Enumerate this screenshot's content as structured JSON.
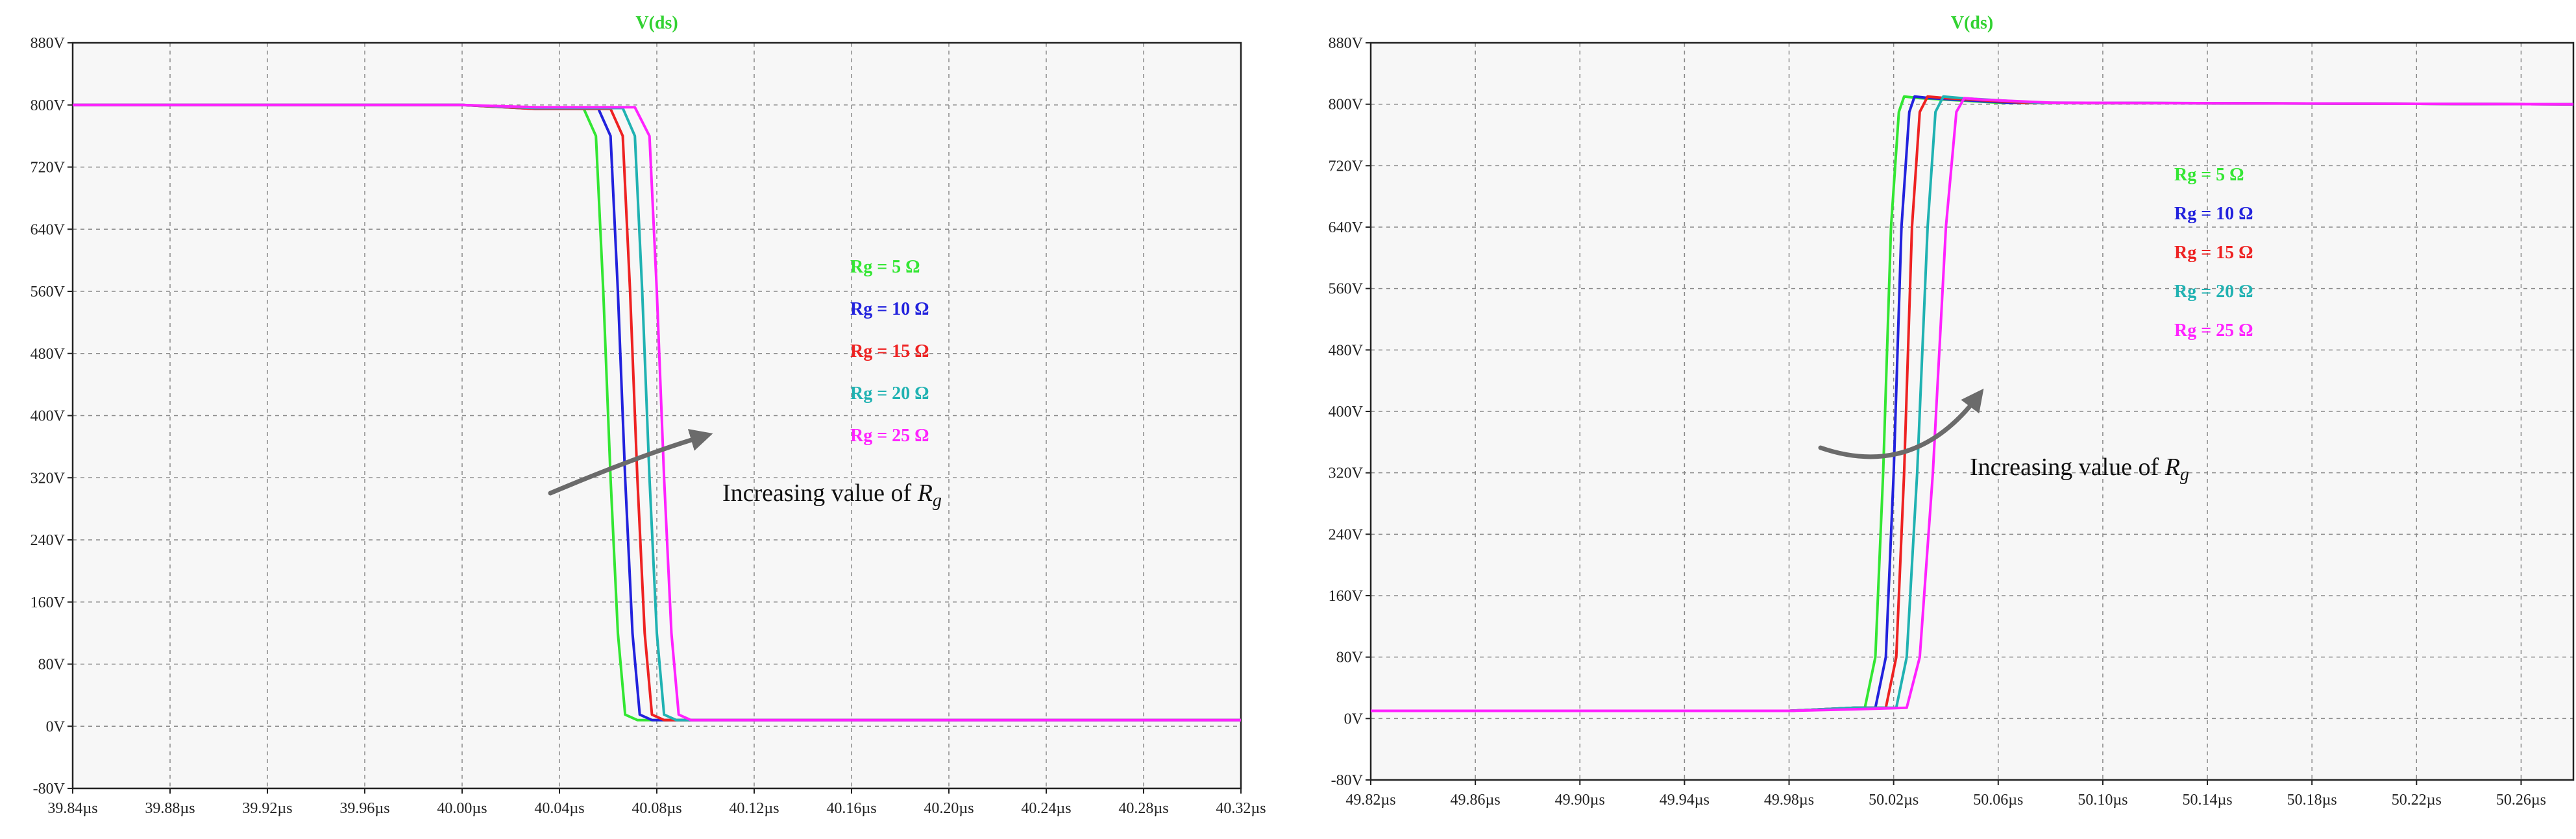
{
  "colors": {
    "background": "#f7f7f7",
    "grid": "#8a8a8a",
    "arrow": "#6b6b6b",
    "title": "#32d232"
  },
  "chart_data": [
    {
      "type": "line",
      "title": "V(ds)",
      "xlabel": "",
      "ylabel": "",
      "x_unit": "µs",
      "y_unit": "V",
      "xlim": [
        39.84,
        40.32
      ],
      "ylim": [
        -80,
        880
      ],
      "x_ticks": [
        "39.84µs",
        "39.88µs",
        "39.92µs",
        "39.96µs",
        "40.00µs",
        "40.04µs",
        "40.08µs",
        "40.12µs",
        "40.16µs",
        "40.20µs",
        "40.24µs",
        "40.28µs",
        "40.32µs"
      ],
      "y_ticks": [
        "880V",
        "800V",
        "720V",
        "640V",
        "560V",
        "480V",
        "400V",
        "320V",
        "240V",
        "160V",
        "80V",
        "0V",
        "-80V"
      ],
      "grid": true,
      "legend_position": "center-right",
      "annotation": "Increasing value of R_g",
      "series": [
        {
          "name": "Rg = 5 Ω",
          "color": "#33e633",
          "points": [
            [
              39.84,
              800
            ],
            [
              40.0,
              800
            ],
            [
              40.03,
              796
            ],
            [
              40.05,
              795
            ],
            [
              40.055,
              760
            ],
            [
              40.058,
              560
            ],
            [
              40.061,
              320
            ],
            [
              40.064,
              120
            ],
            [
              40.067,
              15
            ],
            [
              40.072,
              8
            ],
            [
              40.1,
              8
            ],
            [
              40.32,
              8
            ]
          ]
        },
        {
          "name": "Rg = 10 Ω",
          "color": "#2222dd",
          "points": [
            [
              39.84,
              800
            ],
            [
              40.0,
              800
            ],
            [
              40.03,
              795
            ],
            [
              40.056,
              795
            ],
            [
              40.061,
              760
            ],
            [
              40.064,
              560
            ],
            [
              40.067,
              320
            ],
            [
              40.07,
              120
            ],
            [
              40.073,
              15
            ],
            [
              40.078,
              8
            ],
            [
              40.1,
              8
            ],
            [
              40.32,
              8
            ]
          ]
        },
        {
          "name": "Rg = 15 Ω",
          "color": "#ee2222",
          "points": [
            [
              39.84,
              800
            ],
            [
              40.0,
              800
            ],
            [
              40.03,
              795
            ],
            [
              40.061,
              795
            ],
            [
              40.066,
              760
            ],
            [
              40.069,
              560
            ],
            [
              40.072,
              320
            ],
            [
              40.075,
              120
            ],
            [
              40.078,
              15
            ],
            [
              40.083,
              8
            ],
            [
              40.1,
              8
            ],
            [
              40.32,
              8
            ]
          ]
        },
        {
          "name": "Rg = 20 Ω",
          "color": "#20b2b2",
          "points": [
            [
              39.84,
              800
            ],
            [
              40.0,
              800
            ],
            [
              40.03,
              796
            ],
            [
              40.066,
              796
            ],
            [
              40.071,
              760
            ],
            [
              40.074,
              560
            ],
            [
              40.077,
              320
            ],
            [
              40.08,
              120
            ],
            [
              40.083,
              15
            ],
            [
              40.088,
              8
            ],
            [
              40.1,
              8
            ],
            [
              40.32,
              8
            ]
          ]
        },
        {
          "name": "Rg = 25 Ω",
          "color": "#ff22ff",
          "points": [
            [
              39.84,
              800
            ],
            [
              40.0,
              800
            ],
            [
              40.03,
              797
            ],
            [
              40.071,
              797
            ],
            [
              40.077,
              760
            ],
            [
              40.08,
              560
            ],
            [
              40.083,
              320
            ],
            [
              40.086,
              120
            ],
            [
              40.089,
              15
            ],
            [
              40.094,
              8
            ],
            [
              40.1,
              8
            ],
            [
              40.32,
              8
            ]
          ]
        }
      ]
    },
    {
      "type": "line",
      "title": "V(ds)",
      "xlabel": "",
      "ylabel": "",
      "x_unit": "µs",
      "y_unit": "V",
      "xlim": [
        49.82,
        50.28
      ],
      "ylim": [
        -80,
        880
      ],
      "x_ticks": [
        "49.82µs",
        "49.86µs",
        "49.90µs",
        "49.94µs",
        "49.98µs",
        "50.02µs",
        "50.06µs",
        "50.10µs",
        "50.14µs",
        "50.18µs",
        "50.22µs",
        "50.26µs"
      ],
      "y_ticks": [
        "880V",
        "800V",
        "720V",
        "640V",
        "560V",
        "480V",
        "400V",
        "320V",
        "240V",
        "160V",
        "80V",
        "0V",
        "-80V"
      ],
      "grid": true,
      "legend_position": "upper-center-right",
      "annotation": "Increasing value of R_g",
      "series": [
        {
          "name": "Rg = 5 Ω",
          "color": "#33e633",
          "points": [
            [
              49.82,
              10
            ],
            [
              49.98,
              10
            ],
            [
              50.005,
              14
            ],
            [
              50.009,
              14
            ],
            [
              50.013,
              80
            ],
            [
              50.016,
              320
            ],
            [
              50.019,
              640
            ],
            [
              50.022,
              790
            ],
            [
              50.024,
              810
            ],
            [
              50.03,
              808
            ],
            [
              50.06,
              802
            ],
            [
              50.28,
              800
            ]
          ]
        },
        {
          "name": "Rg = 10 Ω",
          "color": "#2222dd",
          "points": [
            [
              49.82,
              10
            ],
            [
              49.98,
              10
            ],
            [
              50.005,
              14
            ],
            [
              50.013,
              14
            ],
            [
              50.017,
              80
            ],
            [
              50.02,
              320
            ],
            [
              50.023,
              640
            ],
            [
              50.026,
              790
            ],
            [
              50.028,
              810
            ],
            [
              50.034,
              808
            ],
            [
              50.064,
              802
            ],
            [
              50.28,
              800
            ]
          ]
        },
        {
          "name": "Rg = 15 Ω",
          "color": "#ee2222",
          "points": [
            [
              49.82,
              10
            ],
            [
              49.98,
              10
            ],
            [
              50.005,
              14
            ],
            [
              50.017,
              14
            ],
            [
              50.021,
              80
            ],
            [
              50.024,
              320
            ],
            [
              50.027,
              640
            ],
            [
              50.03,
              790
            ],
            [
              50.033,
              810
            ],
            [
              50.04,
              808
            ],
            [
              50.07,
              802
            ],
            [
              50.28,
              800
            ]
          ]
        },
        {
          "name": "Rg = 20 Ω",
          "color": "#20b2b2",
          "points": [
            [
              49.82,
              10
            ],
            [
              49.98,
              10
            ],
            [
              50.005,
              14
            ],
            [
              50.021,
              14
            ],
            [
              50.025,
              80
            ],
            [
              50.029,
              320
            ],
            [
              50.033,
              640
            ],
            [
              50.036,
              790
            ],
            [
              50.039,
              810
            ],
            [
              50.046,
              808
            ],
            [
              50.075,
              802
            ],
            [
              50.28,
              800
            ]
          ]
        },
        {
          "name": "Rg = 25 Ω",
          "color": "#ff22ff",
          "points": [
            [
              49.82,
              10
            ],
            [
              49.98,
              10
            ],
            [
              50.005,
              12
            ],
            [
              50.025,
              14
            ],
            [
              50.03,
              80
            ],
            [
              50.035,
              320
            ],
            [
              50.04,
              640
            ],
            [
              50.044,
              790
            ],
            [
              50.047,
              808
            ],
            [
              50.054,
              806
            ],
            [
              50.08,
              802
            ],
            [
              50.28,
              800
            ]
          ]
        }
      ]
    }
  ]
}
